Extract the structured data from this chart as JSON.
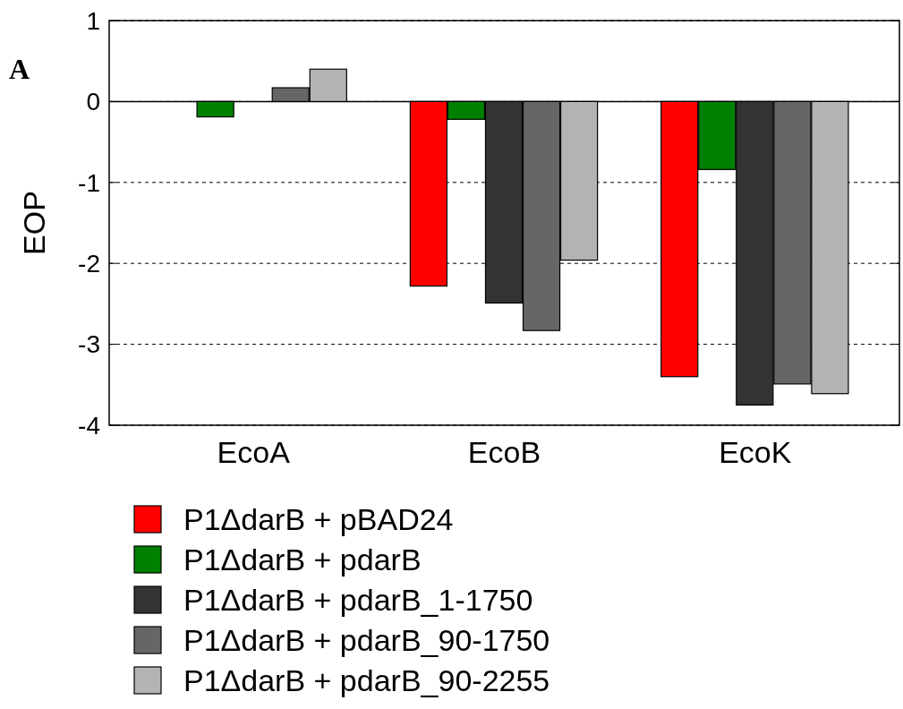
{
  "chart_data": {
    "type": "bar",
    "ylabel": "EOP",
    "categories": [
      "EcoA",
      "EcoB",
      "EcoK"
    ],
    "series": [
      {
        "name": "P1ΔdarB + pBAD24",
        "color": "#ff0000",
        "values": [
          0,
          -2.28,
          -3.4
        ]
      },
      {
        "name": "P1ΔdarB + pdarB",
        "color": "#008000",
        "values": [
          -0.19,
          -0.22,
          -0.84
        ]
      },
      {
        "name": "P1ΔdarB + pdarB_1-1750",
        "color": "#333333",
        "values": [
          0,
          -2.49,
          -3.75
        ]
      },
      {
        "name": "P1ΔdarB + pdarB_90-1750",
        "color": "#666666",
        "values": [
          0.17,
          -2.83,
          -3.49
        ]
      },
      {
        "name": "P1ΔdarB + pdarB_90-2255",
        "color": "#b3b3b3",
        "values": [
          0.4,
          -1.96,
          -3.61
        ]
      }
    ],
    "ylim": [
      -4,
      1
    ],
    "yticks": [
      -4,
      -3,
      -2,
      -1,
      0,
      1
    ],
    "grid": "y",
    "legend": "bottom",
    "ref_lines": [
      {
        "axis": "y",
        "value": 0,
        "line_style": "solid"
      }
    ],
    "annotations": [
      "A"
    ]
  }
}
